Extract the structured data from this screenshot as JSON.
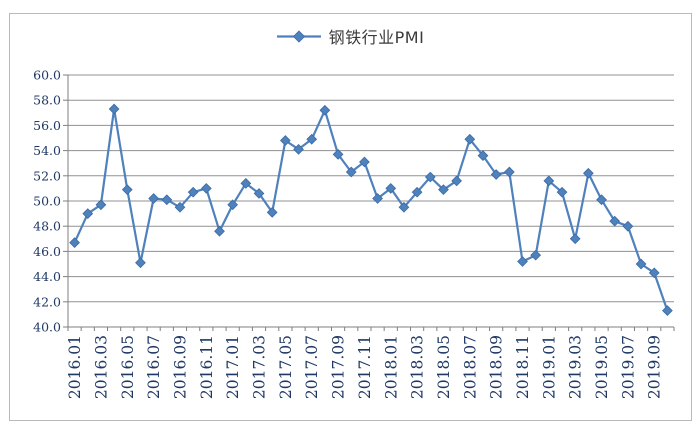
{
  "chart": {
    "colors": {
      "series": "#4f81bd",
      "marker_edge": "#3a6ba5",
      "gridline": "#919191",
      "axis": "#7f7f7f",
      "tick_label": "#1f3864",
      "legend_text": "#3a3a3a",
      "frame_border": "#b9b9b9"
    }
  },
  "chart_data": {
    "type": "line",
    "title": "",
    "legend": [
      "钢铁行业PMI"
    ],
    "legend_position": "top-center",
    "marker": "diamond",
    "grid": true,
    "ylim": [
      40,
      60
    ],
    "y_tick_step": 2,
    "y_tick_labels": [
      "60.0",
      "58.0",
      "56.0",
      "54.0",
      "52.0",
      "50.0",
      "48.0",
      "46.0",
      "44.0",
      "42.0",
      "40.0"
    ],
    "categories": [
      "2016.01",
      "2016.02",
      "2016.03",
      "2016.04",
      "2016.05",
      "2016.06",
      "2016.07",
      "2016.08",
      "2016.09",
      "2016.10",
      "2016.11",
      "2016.12",
      "2017.01",
      "2017.02",
      "2017.03",
      "2017.04",
      "2017.05",
      "2017.06",
      "2017.07",
      "2017.08",
      "2017.09",
      "2017.10",
      "2017.11",
      "2017.12",
      "2018.01",
      "2018.02",
      "2018.03",
      "2018.04",
      "2018.05",
      "2018.06",
      "2018.07",
      "2018.08",
      "2018.09",
      "2018.10",
      "2018.11",
      "2018.12",
      "2019.01",
      "2019.02",
      "2019.03",
      "2019.04",
      "2019.05",
      "2019.06",
      "2019.07",
      "2019.08",
      "2019.09",
      "2019.10"
    ],
    "x_tick_labels_shown": [
      "2016.01",
      "2016.03",
      "2016.05",
      "2016.07",
      "2016.09",
      "2016.11",
      "2017.01",
      "2017.03",
      "2017.05",
      "2017.07",
      "2017.09",
      "2017.11",
      "2018.01",
      "2018.03",
      "2018.05",
      "2018.07",
      "2018.09",
      "2018.11",
      "2019.01",
      "2019.03",
      "2019.05",
      "2019.07",
      "2019.09"
    ],
    "series": [
      {
        "name": "钢铁行业PMI",
        "values": [
          46.7,
          49.0,
          49.7,
          57.3,
          50.9,
          45.1,
          50.2,
          50.1,
          49.5,
          50.7,
          51.0,
          47.6,
          49.7,
          51.4,
          50.6,
          49.1,
          54.8,
          54.1,
          54.9,
          57.2,
          53.7,
          52.3,
          53.1,
          50.2,
          51.0,
          49.5,
          50.7,
          51.9,
          50.9,
          51.6,
          54.9,
          53.6,
          52.1,
          52.3,
          45.2,
          45.7,
          51.6,
          50.7,
          47.0,
          52.2,
          50.1,
          48.4,
          48.0,
          45.0,
          44.3,
          41.3
        ]
      }
    ]
  }
}
